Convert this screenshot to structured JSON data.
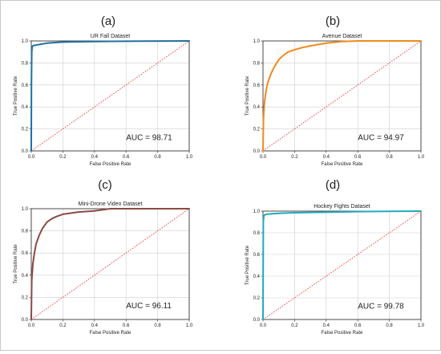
{
  "colors": {
    "diagonal": "#e8413a",
    "grid": "#cfcfcf",
    "axis": "#222222",
    "text": "#222222"
  },
  "chart_data": [
    {
      "type": "line",
      "panel_label": "(a)",
      "title": "UR Fall Dataset",
      "xlabel": "False Positive Rate",
      "ylabel": "True Positive Rate",
      "xlim": [
        0,
        1
      ],
      "ylim": [
        0,
        1
      ],
      "xticks": [
        "0.0",
        "0.2",
        "0.4",
        "0.6",
        "0.8",
        "1.0"
      ],
      "yticks": [
        "0.0",
        "0.2",
        "0.4",
        "0.6",
        "0.8",
        "1.0"
      ],
      "grid": true,
      "auc_text": "AUC = 98.71",
      "series": [
        {
          "color": "#1f6fa3",
          "x": [
            0,
            0.001,
            0.003,
            0.006,
            0.01,
            0.02,
            0.04,
            0.06,
            0.08,
            0.1,
            0.15,
            0.2,
            0.3,
            0.5,
            0.7,
            1.0
          ],
          "y": [
            0,
            0.6,
            0.9,
            0.95,
            0.955,
            0.96,
            0.965,
            0.97,
            0.975,
            0.98,
            0.985,
            0.99,
            0.993,
            0.996,
            0.998,
            1.0
          ]
        }
      ],
      "baseline": {
        "x": [
          0,
          1
        ],
        "y": [
          0,
          1
        ],
        "style": "dotted"
      }
    },
    {
      "type": "line",
      "panel_label": "(b)",
      "title": "Avenue Dataset",
      "xlabel": "False Positive Rate",
      "ylabel": "True Positive Rate",
      "xlim": [
        0,
        1
      ],
      "ylim": [
        0,
        1
      ],
      "xticks": [
        "0.0",
        "0.2",
        "0.4",
        "0.6",
        "0.8",
        "1.0"
      ],
      "yticks": [
        "0.0",
        "0.2",
        "0.4",
        "0.6",
        "0.8",
        "1.0"
      ],
      "grid": true,
      "auc_text": "AUC = 94.97",
      "series": [
        {
          "color": "#f08a1c",
          "x": [
            0,
            0.003,
            0.01,
            0.02,
            0.03,
            0.05,
            0.07,
            0.1,
            0.13,
            0.16,
            0.2,
            0.25,
            0.3,
            0.4,
            0.5,
            0.6,
            0.8,
            1.0
          ],
          "y": [
            0,
            0.3,
            0.45,
            0.55,
            0.62,
            0.7,
            0.76,
            0.83,
            0.87,
            0.9,
            0.92,
            0.94,
            0.955,
            0.98,
            0.995,
            1.0,
            1.0,
            1.0
          ]
        }
      ],
      "baseline": {
        "x": [
          0,
          1
        ],
        "y": [
          0,
          1
        ],
        "style": "dotted"
      }
    },
    {
      "type": "line",
      "panel_label": "(c)",
      "title": "Mini-Drone Video Dataset",
      "xlabel": "False Positive Rate",
      "ylabel": "True Positive Rate",
      "xlim": [
        0,
        1
      ],
      "ylim": [
        0,
        1
      ],
      "xticks": [
        "0.0",
        "0.2",
        "0.4",
        "0.6",
        "0.8",
        "1.0"
      ],
      "yticks": [
        "0.0",
        "0.2",
        "0.4",
        "0.6",
        "0.8",
        "1.0"
      ],
      "grid": true,
      "auc_text": "AUC = 96.11",
      "series": [
        {
          "color": "#8b4a42",
          "x": [
            0,
            0.003,
            0.01,
            0.02,
            0.03,
            0.05,
            0.07,
            0.1,
            0.13,
            0.16,
            0.2,
            0.25,
            0.3,
            0.4,
            0.5,
            0.6,
            0.8,
            1.0
          ],
          "y": [
            0,
            0.35,
            0.5,
            0.6,
            0.68,
            0.76,
            0.82,
            0.88,
            0.91,
            0.93,
            0.95,
            0.96,
            0.97,
            0.98,
            1.0,
            1.0,
            1.0,
            1.0
          ]
        }
      ],
      "baseline": {
        "x": [
          0,
          1
        ],
        "y": [
          0,
          1
        ],
        "style": "dotted"
      }
    },
    {
      "type": "line",
      "panel_label": "(d)",
      "title": "Hockey Fights Dataset",
      "xlabel": "False Positive Rate",
      "ylabel": "True Positive Rate",
      "xlim": [
        0,
        1
      ],
      "ylim": [
        0,
        1
      ],
      "xticks": [
        "0.0",
        "0.2",
        "0.4",
        "0.6",
        "0.8",
        "1.0"
      ],
      "yticks": [
        "0.0",
        "0.2",
        "0.4",
        "0.6",
        "0.8",
        "1.0"
      ],
      "grid": true,
      "auc_text": "AUC = 99.78",
      "series": [
        {
          "color": "#23a8bf",
          "x": [
            0,
            0.002,
            0.005,
            0.01,
            0.02,
            0.05,
            0.1,
            0.2,
            0.4,
            0.6,
            0.8,
            1.0
          ],
          "y": [
            0,
            0.9,
            0.95,
            0.965,
            0.97,
            0.975,
            0.98,
            0.985,
            0.99,
            0.995,
            0.998,
            1.0
          ]
        }
      ],
      "baseline": {
        "x": [
          0,
          1
        ],
        "y": [
          0,
          1
        ],
        "style": "dotted"
      }
    }
  ]
}
